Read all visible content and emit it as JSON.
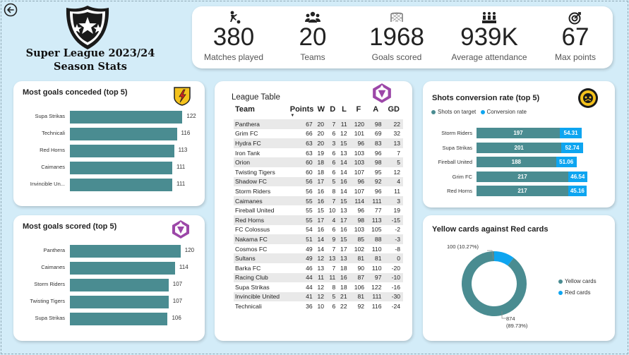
{
  "header": {
    "title_line1": "Super League 2023/24",
    "title_line2": "Season Stats"
  },
  "kpis": [
    {
      "icon": "football-player-icon",
      "value": "380",
      "label": "Matches played"
    },
    {
      "icon": "team-icon",
      "value": "20",
      "label": "Teams"
    },
    {
      "icon": "goal-net-icon",
      "value": "1968",
      "label": "Goals scored"
    },
    {
      "icon": "crowd-icon",
      "value": "939K",
      "label": "Average attendance"
    },
    {
      "icon": "target-icon",
      "value": "67",
      "label": "Max points"
    }
  ],
  "conceded": {
    "title": "Most goals conceded (top 5)",
    "chart_data": {
      "type": "bar",
      "categories": [
        "Supa Strikas",
        "Technicali",
        "Red Horns",
        "Caimanes",
        "Invincible Un..."
      ],
      "values": [
        122,
        116,
        113,
        111,
        111
      ],
      "value_labels": [
        "122",
        "116",
        "113",
        "111",
        "111"
      ]
    }
  },
  "scored": {
    "title": "Most goals scored (top 5)",
    "chart_data": {
      "type": "bar",
      "categories": [
        "Panthera",
        "Caimanes",
        "Storm Riders",
        "Twisting Tigers",
        "Supa Strikas"
      ],
      "values": [
        120,
        114,
        107,
        107,
        106
      ],
      "value_labels": [
        "120",
        "114",
        "107",
        "107",
        "106"
      ]
    }
  },
  "league": {
    "title": "League Table",
    "sort_indicator": "▼",
    "columns": [
      "Team",
      "Points",
      "W",
      "D",
      "L",
      "F",
      "A",
      "GD"
    ],
    "rows": [
      [
        "Panthera",
        "67",
        "20",
        "7",
        "11",
        "120",
        "98",
        "22"
      ],
      [
        "Grim FC",
        "66",
        "20",
        "6",
        "12",
        "101",
        "69",
        "32"
      ],
      [
        "Hydra FC",
        "63",
        "20",
        "3",
        "15",
        "96",
        "83",
        "13"
      ],
      [
        "Iron Tank",
        "63",
        "19",
        "6",
        "13",
        "103",
        "96",
        "7"
      ],
      [
        "Orion",
        "60",
        "18",
        "6",
        "14",
        "103",
        "98",
        "5"
      ],
      [
        "Twisting Tigers",
        "60",
        "18",
        "6",
        "14",
        "107",
        "95",
        "12"
      ],
      [
        "Shadow FC",
        "56",
        "17",
        "5",
        "16",
        "96",
        "92",
        "4"
      ],
      [
        "Storm Riders",
        "56",
        "16",
        "8",
        "14",
        "107",
        "96",
        "11"
      ],
      [
        "Caimanes",
        "55",
        "16",
        "7",
        "15",
        "114",
        "111",
        "3"
      ],
      [
        "Fireball United",
        "55",
        "15",
        "10",
        "13",
        "96",
        "77",
        "19"
      ],
      [
        "Red Horns",
        "55",
        "17",
        "4",
        "17",
        "98",
        "113",
        "-15"
      ],
      [
        "FC Colossus",
        "54",
        "16",
        "6",
        "16",
        "103",
        "105",
        "-2"
      ],
      [
        "Nakama FC",
        "51",
        "14",
        "9",
        "15",
        "85",
        "88",
        "-3"
      ],
      [
        "Cosmos FC",
        "49",
        "14",
        "7",
        "17",
        "102",
        "110",
        "-8"
      ],
      [
        "Sultans",
        "49",
        "12",
        "13",
        "13",
        "81",
        "81",
        "0"
      ],
      [
        "Barka FC",
        "46",
        "13",
        "7",
        "18",
        "90",
        "110",
        "-20"
      ],
      [
        "Racing Club",
        "44",
        "11",
        "11",
        "16",
        "87",
        "97",
        "-10"
      ],
      [
        "Supa Strikas",
        "44",
        "12",
        "8",
        "18",
        "106",
        "122",
        "-16"
      ],
      [
        "Invincible United",
        "41",
        "12",
        "5",
        "21",
        "81",
        "111",
        "-30"
      ],
      [
        "Technicali",
        "36",
        "10",
        "6",
        "22",
        "92",
        "116",
        "-24"
      ]
    ]
  },
  "shots": {
    "title": "Shots conversion rate (top 5)",
    "legend": [
      "Shots on target",
      "Conversion rate"
    ],
    "colors": {
      "shots": "#4a8c91",
      "rate": "#0ea5f0"
    },
    "chart_data": {
      "type": "bar",
      "categories": [
        "Storm Riders",
        "Supa Strikas",
        "Fireball United",
        "Grim FC",
        "Red Horns"
      ],
      "series": [
        {
          "name": "Shots on target",
          "values": [
            197,
            201,
            188,
            217,
            217
          ],
          "labels": [
            "197",
            "201",
            "188",
            "217",
            "217"
          ]
        },
        {
          "name": "Conversion rate",
          "values": [
            54.31,
            52.74,
            51.06,
            46.54,
            45.16
          ],
          "labels": [
            "54.31",
            "52.74",
            "51.06",
            "46.54",
            "45.16"
          ]
        }
      ]
    }
  },
  "cards": {
    "title": "Yellow cards against Red cards",
    "legend": [
      "Yellow cards",
      "Red cards"
    ],
    "colors": {
      "yellow": "#4a8c91",
      "red": "#0ea5f0"
    },
    "chart_data": {
      "type": "pie",
      "categories": [
        "Yellow cards",
        "Red cards"
      ],
      "values": [
        874,
        100
      ],
      "percent": [
        89.73,
        10.27
      ]
    },
    "label_red": "100 (10.27%)",
    "label_yellow_1": "874",
    "label_yellow_2": "(89.73%)"
  }
}
